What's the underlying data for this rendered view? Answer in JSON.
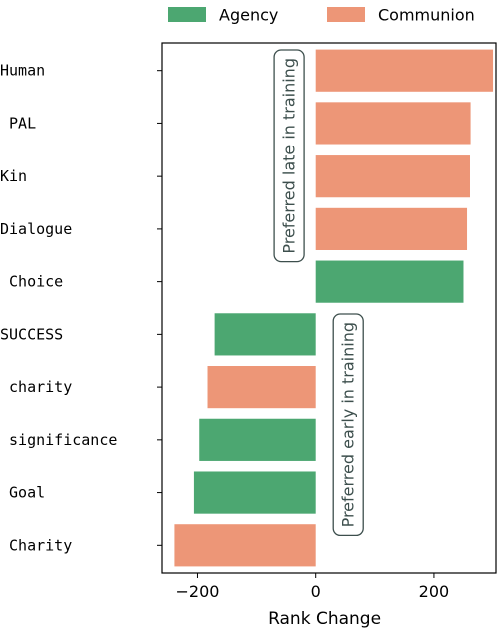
{
  "chart_data": {
    "type": "bar",
    "orientation": "horizontal",
    "xlabel": "Rank Change",
    "xlim": [
      -260,
      305
    ],
    "xticks": [
      -200,
      0,
      200
    ],
    "xtick_labels": [
      "−200",
      "0",
      "200"
    ],
    "grid": false,
    "legend": {
      "placement": "top",
      "entries": [
        {
          "name": "Agency",
          "color": "#4ca771"
        },
        {
          "name": "Communion",
          "color": "#ed9677"
        }
      ]
    },
    "categories": [
      "Human",
      "PAL",
      "Kin",
      "Dialogue",
      "Choice",
      "SUCCESS",
      "charity",
      "significance",
      "Goal",
      "Charity"
    ],
    "category_labels": [
      "Human",
      " PAL",
      "Kin",
      "Dialogue",
      " Choice",
      "SUCCESS",
      " charity",
      " significance",
      " Goal",
      " Charity"
    ],
    "values": [
      300,
      262,
      261,
      256,
      250,
      -171,
      -183,
      -197,
      -206,
      -239
    ],
    "bar_groups": [
      "Communion",
      "Communion",
      "Communion",
      "Communion",
      "Agency",
      "Agency",
      "Communion",
      "Agency",
      "Agency",
      "Communion"
    ],
    "annotations": [
      {
        "text": "Preferred late in training",
        "anchor_x": -45,
        "orientation": "vertical"
      },
      {
        "text": "Preferred early in training",
        "anchor_x": 55,
        "orientation": "vertical"
      }
    ]
  }
}
